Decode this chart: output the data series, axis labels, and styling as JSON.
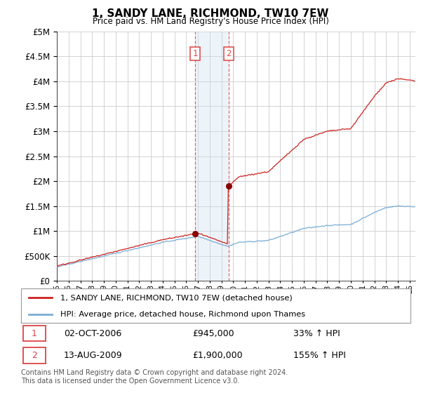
{
  "title": "1, SANDY LANE, RICHMOND, TW10 7EW",
  "subtitle": "Price paid vs. HM Land Registry's House Price Index (HPI)",
  "legend_line1": "1, SANDY LANE, RICHMOND, TW10 7EW (detached house)",
  "legend_line2": "HPI: Average price, detached house, Richmond upon Thames",
  "table_row1": [
    "1",
    "02-OCT-2006",
    "£945,000",
    "33% ↑ HPI"
  ],
  "table_row2": [
    "2",
    "13-AUG-2009",
    "£1,900,000",
    "155% ↑ HPI"
  ],
  "footer": "Contains HM Land Registry data © Crown copyright and database right 2024.\nThis data is licensed under the Open Government Licence v3.0.",
  "hpi_color": "#7aadd4",
  "price_color": "#cc2222",
  "shade_color": "#cce0f0",
  "vline_color": "#dd4444",
  "ylim": [
    0,
    5000000
  ],
  "yticks": [
    0,
    500000,
    1000000,
    1500000,
    2000000,
    2500000,
    3000000,
    3500000,
    4000000,
    4500000,
    5000000
  ],
  "xlim_start": 1995.0,
  "xlim_end": 2025.5,
  "marker1_x": 2006.75,
  "marker1_y": 945000,
  "marker2_x": 2009.62,
  "marker2_y": 1900000,
  "shade_x1": 2006.75,
  "shade_x2": 2009.62
}
